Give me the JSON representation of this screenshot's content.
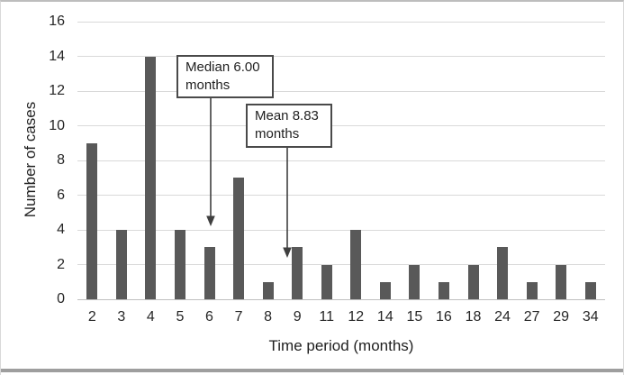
{
  "figure": {
    "background": "#ffffff",
    "border_color": "#d9d9d9",
    "bottom_rule_color": "#9e9e9e"
  },
  "chart_data": {
    "type": "bar",
    "title": "",
    "xlabel": "Time period (months)",
    "ylabel": "Number of cases",
    "categories": [
      "2",
      "3",
      "4",
      "5",
      "6",
      "7",
      "8",
      "9",
      "11",
      "12",
      "14",
      "15",
      "16",
      "18",
      "24",
      "27",
      "29",
      "34"
    ],
    "values": [
      9,
      4,
      14,
      4,
      3,
      7,
      1,
      3,
      2,
      4,
      1,
      2,
      1,
      2,
      3,
      1,
      2,
      1
    ],
    "ylim": [
      0,
      16
    ],
    "yticks": [
      0,
      2,
      4,
      6,
      8,
      10,
      12,
      14,
      16
    ],
    "grid": true,
    "legend": "none",
    "bar_color": "#595959",
    "gridline_color": "#d9d9d9",
    "axis_line_color": "#bfbfbf",
    "text_color": "#262626",
    "annotations": [
      {
        "line1": "Median 6.00",
        "line2": "months",
        "points_to_x_value": 6
      },
      {
        "line1": "Mean 8.83",
        "line2": "months",
        "points_to_x_value": 8.83
      }
    ]
  }
}
